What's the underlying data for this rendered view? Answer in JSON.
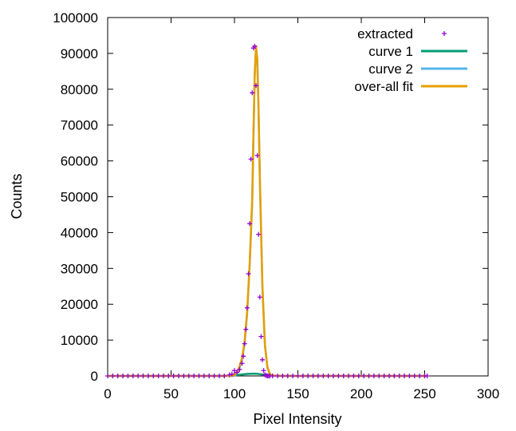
{
  "chart_data": {
    "type": "line",
    "title": "",
    "xlabel": "Pixel Intensity",
    "ylabel": "Counts",
    "xlim": [
      0,
      300
    ],
    "ylim": [
      0,
      100000
    ],
    "xticks": [
      0,
      50,
      100,
      150,
      200,
      250,
      300
    ],
    "yticks": [
      0,
      10000,
      20000,
      30000,
      40000,
      50000,
      60000,
      70000,
      80000,
      90000,
      100000
    ],
    "grid": false,
    "legend_position": "top-right",
    "legend": [
      {
        "label": "extracted",
        "style": "points",
        "color": "#9400d3"
      },
      {
        "label": "curve 1",
        "style": "line",
        "color": "#009e73"
      },
      {
        "label": "curve 2",
        "style": "line",
        "color": "#56b4e9"
      },
      {
        "label": "over-all fit",
        "style": "line",
        "color": "#e69f00"
      }
    ],
    "series": [
      {
        "name": "extracted",
        "style": "points",
        "color": "#9400d3",
        "x": [
          0,
          4,
          8,
          12,
          16,
          20,
          24,
          28,
          32,
          36,
          40,
          44,
          48,
          52,
          56,
          60,
          64,
          68,
          72,
          76,
          80,
          84,
          88,
          92,
          96,
          98,
          100,
          102,
          104,
          106,
          107,
          108,
          109,
          110,
          111,
          112,
          113,
          114,
          115,
          116,
          117,
          118,
          119,
          120,
          121,
          122,
          123,
          124,
          125,
          126,
          127,
          128,
          130,
          134,
          138,
          142,
          146,
          150,
          154,
          158,
          162,
          166,
          170,
          174,
          178,
          182,
          186,
          190,
          194,
          198,
          202,
          206,
          210,
          214,
          218,
          222,
          226,
          230,
          234,
          238,
          242,
          246,
          250,
          252
        ],
        "y": [
          0,
          0,
          0,
          0,
          0,
          0,
          0,
          0,
          0,
          0,
          0,
          0,
          0,
          0,
          0,
          0,
          0,
          0,
          0,
          0,
          0,
          0,
          0,
          0,
          300,
          500,
          1500,
          1000,
          1800,
          3500,
          5500,
          9000,
          13000,
          19000,
          28500,
          42500,
          60500,
          79000,
          91500,
          92000,
          81000,
          61500,
          39500,
          22000,
          11000,
          4500,
          1500,
          300,
          100,
          0,
          0,
          0,
          0,
          0,
          0,
          0,
          0,
          0,
          0,
          0,
          0,
          0,
          0,
          0,
          0,
          0,
          0,
          0,
          0,
          0,
          0,
          0,
          0,
          0,
          0,
          0,
          0,
          0,
          0,
          0,
          0,
          0,
          0,
          0
        ]
      },
      {
        "name": "curve 1",
        "style": "line",
        "color": "#009e73",
        "x": [
          0,
          90,
          100,
          105,
          110,
          115,
          118,
          120,
          125,
          130,
          140,
          252
        ],
        "y": [
          0,
          0,
          150,
          350,
          550,
          650,
          600,
          500,
          250,
          80,
          0,
          0
        ]
      },
      {
        "name": "curve 2",
        "style": "line",
        "color": "#56b4e9",
        "x": [
          0,
          95,
          100,
          103,
          106,
          108,
          110,
          112,
          114,
          115,
          116,
          117,
          118,
          119,
          120,
          122,
          124,
          126,
          128,
          130,
          135,
          252
        ],
        "y": [
          0,
          0,
          0,
          1300,
          4500,
          9000,
          17500,
          31000,
          49000,
          68000,
          84000,
          91500,
          88000,
          74000,
          55000,
          25000,
          8500,
          2300,
          400,
          80,
          0,
          0
        ]
      },
      {
        "name": "over-all fit",
        "style": "line",
        "color": "#e69f00",
        "x": [
          0,
          95,
          100,
          103,
          106,
          108,
          110,
          112,
          114,
          115,
          116,
          117,
          118,
          119,
          120,
          122,
          124,
          126,
          128,
          130,
          135,
          252
        ],
        "y": [
          0,
          0,
          150,
          1600,
          5000,
          9600,
          18000,
          31500,
          49500,
          68500,
          84500,
          92000,
          88500,
          74500,
          55500,
          25300,
          8700,
          2500,
          500,
          150,
          0,
          0
        ]
      }
    ]
  }
}
